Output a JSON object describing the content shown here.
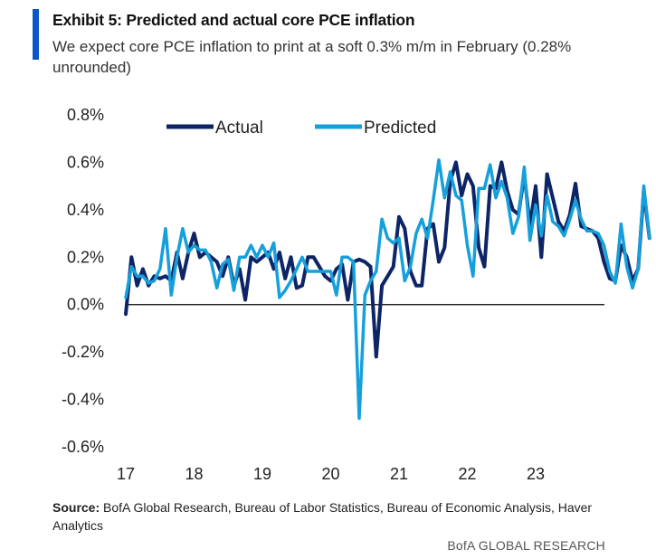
{
  "header": {
    "title": "Exhibit 5: Predicted and actual core PCE inflation",
    "subtitle": "We expect core PCE inflation to print at a soft 0.3% m/m in February (0.28% unrounded)"
  },
  "footer": {
    "source_label": "Source:",
    "source_text": " BofA Global Research, Bureau of Labor Statistics, Bureau of Economic Analysis, Haver Analytics",
    "brand": "BofA GLOBAL RESEARCH"
  },
  "colors": {
    "actual": "#0d2466",
    "predicted": "#16a0db",
    "accent": "#0b57c8"
  },
  "chart_data": {
    "type": "line",
    "xlabel": "",
    "ylabel": "",
    "ylim": [
      -0.6,
      0.8
    ],
    "xlim": [
      2017,
      2024
    ],
    "y_ticks": [
      -0.6,
      -0.4,
      -0.2,
      0.0,
      0.2,
      0.4,
      0.6,
      0.8
    ],
    "y_tick_labels": [
      "-0.6%",
      "-0.4%",
      "-0.2%",
      "0.0%",
      "0.2%",
      "0.4%",
      "0.6%",
      "0.8%"
    ],
    "x_ticks": [
      2017,
      2018,
      2019,
      2020,
      2021,
      2022,
      2023
    ],
    "x_tick_labels": [
      "17",
      "18",
      "19",
      "20",
      "21",
      "22",
      "23"
    ],
    "legend_position": "top",
    "zero_line": true,
    "grid": false,
    "x_start": "2017-01",
    "frequency": "monthly",
    "series": [
      {
        "name": "Actual",
        "values": [
          -0.04,
          0.2,
          0.08,
          0.15,
          0.08,
          0.12,
          0.11,
          0.12,
          0.1,
          0.22,
          0.11,
          0.22,
          0.3,
          0.2,
          0.22,
          0.2,
          0.18,
          0.12,
          0.2,
          0.08,
          0.15,
          0.02,
          0.2,
          0.18,
          0.2,
          0.22,
          0.15,
          0.22,
          0.11,
          0.2,
          0.07,
          0.08,
          0.2,
          0.2,
          0.16,
          0.12,
          0.1,
          0.15,
          0.17,
          0.02,
          0.18,
          0.19,
          0.18,
          0.16,
          -0.22,
          0.08,
          0.12,
          0.16,
          0.37,
          0.32,
          0.14,
          0.08,
          0.08,
          0.32,
          0.34,
          0.18,
          0.24,
          0.52,
          0.6,
          0.46,
          0.55,
          0.5,
          0.24,
          0.16,
          0.5,
          0.49,
          0.6,
          0.48,
          0.4,
          0.38,
          0.55,
          0.33,
          0.5,
          0.2,
          0.55,
          0.45,
          0.35,
          0.31,
          0.38,
          0.51,
          0.33,
          0.32,
          0.31,
          0.28,
          0.18,
          0.11,
          0.1,
          0.25,
          0.2,
          0.1,
          0.15,
          0.48,
          0.28
        ]
      },
      {
        "name": "Predicted",
        "values": [
          0.03,
          0.16,
          0.12,
          0.12,
          0.09,
          0.1,
          0.15,
          0.32,
          0.04,
          0.2,
          0.32,
          0.22,
          0.25,
          0.23,
          0.23,
          0.18,
          0.07,
          0.17,
          0.19,
          0.06,
          0.2,
          0.2,
          0.25,
          0.2,
          0.25,
          0.2,
          0.26,
          0.03,
          0.06,
          0.1,
          0.15,
          0.2,
          0.14,
          0.14,
          0.14,
          0.14,
          0.14,
          0.04,
          0.2,
          0.2,
          0.18,
          -0.48,
          0.04,
          0.1,
          0.14,
          0.36,
          0.28,
          0.26,
          0.28,
          0.1,
          0.16,
          0.3,
          0.36,
          0.28,
          0.44,
          0.61,
          0.45,
          0.56,
          0.46,
          0.44,
          0.25,
          0.12,
          0.49,
          0.49,
          0.59,
          0.45,
          0.52,
          0.45,
          0.3,
          0.37,
          0.58,
          0.27,
          0.42,
          0.29,
          0.46,
          0.35,
          0.33,
          0.29,
          0.36,
          0.44,
          0.36,
          0.31,
          0.31,
          0.3,
          0.25,
          0.14,
          0.09,
          0.34,
          0.16,
          0.07,
          0.15,
          0.5,
          0.28
        ]
      }
    ]
  }
}
